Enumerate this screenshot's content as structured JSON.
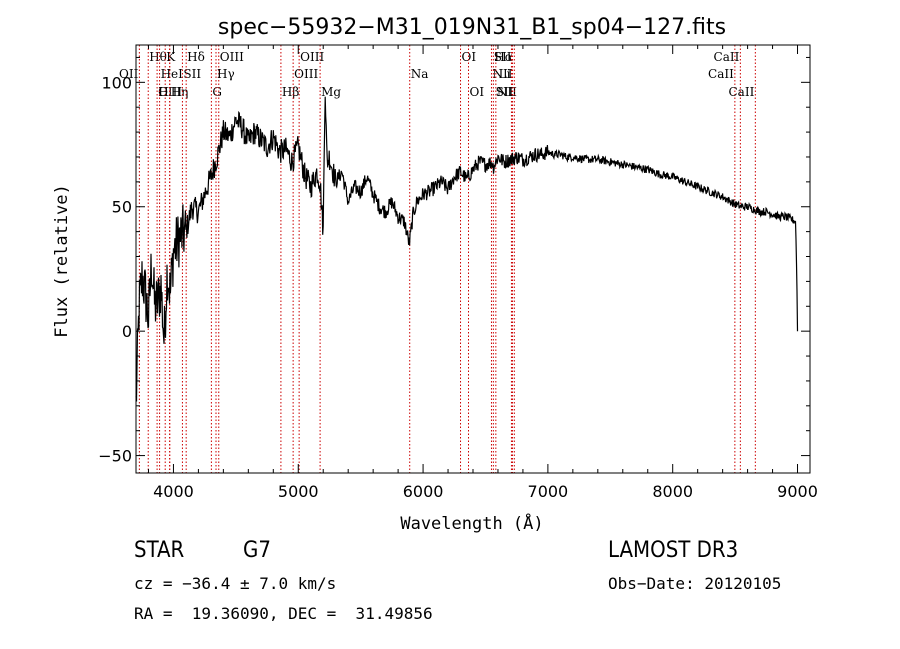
{
  "chart_data": {
    "type": "line",
    "title": "spec−55932−M31_019N31_B1_sp04−127.fits",
    "xlabel": "Wavelength (Å)",
    "ylabel": "Flux (relative)",
    "xlim": [
      3700,
      9100
    ],
    "ylim": [
      -57,
      115
    ],
    "xticks": [
      4000,
      5000,
      6000,
      7000,
      8000,
      9000
    ],
    "yticks": [
      -50,
      0,
      50,
      100
    ],
    "ytick_labels": [
      "−50",
      "0",
      "50",
      "100"
    ],
    "grid": false,
    "series": [
      {
        "name": "Flux",
        "x": [
          3700,
          3725,
          3750,
          3775,
          3800,
          3825,
          3850,
          3875,
          3900,
          3925,
          3950,
          3975,
          4000,
          4050,
          4100,
          4150,
          4200,
          4250,
          4300,
          4350,
          4400,
          4450,
          4500,
          4550,
          4600,
          4650,
          4700,
          4750,
          4800,
          4850,
          4900,
          4950,
          5000,
          5050,
          5100,
          5150,
          5175,
          5200,
          5215,
          5230,
          5250,
          5300,
          5350,
          5400,
          5450,
          5500,
          5550,
          5600,
          5650,
          5700,
          5750,
          5800,
          5850,
          5890,
          5920,
          5950,
          6000,
          6050,
          6100,
          6150,
          6200,
          6250,
          6300,
          6350,
          6400,
          6450,
          6500,
          6550,
          6563,
          6600,
          6650,
          6700,
          6750,
          6800,
          6850,
          6900,
          6950,
          7000,
          7050,
          7100,
          7150,
          7200,
          7300,
          7400,
          7500,
          7600,
          7700,
          7800,
          7900,
          8000,
          8100,
          8200,
          8300,
          8400,
          8500,
          8550,
          8600,
          8650,
          8700,
          8750,
          8800,
          8850,
          8900,
          8950,
          8985,
          8995,
          9000
        ],
        "values": [
          -30,
          10,
          22,
          15,
          5,
          28,
          10,
          12,
          18,
          -4,
          25,
          15,
          32,
          38,
          40,
          50,
          48,
          55,
          62,
          70,
          80,
          78,
          85,
          82,
          76,
          80,
          77,
          74,
          78,
          72,
          73,
          68,
          74,
          63,
          58,
          64,
          60,
          40,
          100,
          68,
          70,
          60,
          64,
          52,
          58,
          56,
          62,
          55,
          50,
          48,
          52,
          46,
          44,
          35,
          47,
          52,
          55,
          56,
          58,
          60,
          57,
          62,
          64,
          61,
          65,
          68,
          67,
          68,
          66,
          70,
          68,
          69,
          70,
          69,
          70,
          71,
          71,
          72,
          71,
          71,
          70,
          70,
          69,
          69,
          68,
          67,
          66,
          65,
          63,
          62,
          60,
          58,
          56,
          54,
          51,
          50,
          50,
          49,
          48,
          48,
          47,
          46,
          46,
          45,
          44,
          20,
          0
        ]
      }
    ],
    "emission_lines": [
      {
        "label": "OII",
        "x": 3727,
        "row": 1,
        "side": "left"
      },
      {
        "label": "Hθ",
        "x": 3798,
        "row": 0,
        "side": "right"
      },
      {
        "label": "OIII",
        "x": 3869,
        "row": 2,
        "side": "right"
      },
      {
        "label": "HeI",
        "x": 3889,
        "row": 1,
        "side": "right"
      },
      {
        "label": "K",
        "x": 3934,
        "row": 0,
        "side": "right"
      },
      {
        "label": "Hη",
        "x": 3970,
        "row": 2,
        "side": "right"
      },
      {
        "label": "SII",
        "x": 4072,
        "row": 1,
        "side": "right"
      },
      {
        "label": "Hδ",
        "x": 4102,
        "row": 0,
        "side": "right"
      },
      {
        "label": "H",
        "x": 3970,
        "row": 2,
        "side": "left"
      },
      {
        "label": "G",
        "x": 4304,
        "row": 2,
        "side": "right"
      },
      {
        "label": "OIII",
        "x": 4363,
        "row": 0,
        "side": "right"
      },
      {
        "label": "Hγ",
        "x": 4341,
        "row": 1,
        "side": "right"
      },
      {
        "label": "Hβ",
        "x": 4861,
        "row": 2,
        "side": "right"
      },
      {
        "label": "OIII",
        "x": 4959,
        "row": 1,
        "side": "right"
      },
      {
        "label": "OIII",
        "x": 5007,
        "row": 0,
        "side": "right"
      },
      {
        "label": "Mg",
        "x": 5175,
        "row": 2,
        "side": "right"
      },
      {
        "label": "Na",
        "x": 5893,
        "row": 1,
        "side": "right"
      },
      {
        "label": "OI",
        "x": 6300,
        "row": 0,
        "side": "right"
      },
      {
        "label": "OI",
        "x": 6364,
        "row": 2,
        "side": "right"
      },
      {
        "label": "NII",
        "x": 6548,
        "row": 1,
        "side": "right"
      },
      {
        "label": "Hα",
        "x": 6563,
        "row": 0,
        "side": "right"
      },
      {
        "label": "NII",
        "x": 6583,
        "row": 2,
        "side": "right"
      },
      {
        "label": "SII",
        "x": 6716,
        "row": 0,
        "side": "left"
      },
      {
        "label": "Li",
        "x": 6708,
        "row": 1,
        "side": "left"
      },
      {
        "label": "SII",
        "x": 6731,
        "row": 2,
        "side": "left"
      },
      {
        "label": "CaII",
        "x": 8498,
        "row": 1,
        "side": "left"
      },
      {
        "label": "CaII",
        "x": 8542,
        "row": 0,
        "side": "left"
      },
      {
        "label": "CaII",
        "x": 8662,
        "row": 2,
        "side": "left"
      }
    ]
  },
  "info": {
    "class": "STAR",
    "subclass": "G7",
    "survey": "LAMOST DR3",
    "cz": "cz = −36.4 ± 7.0 km/s",
    "obs_date": "Obs−Date: 20120105",
    "radec": "RA =  19.36090, DEC =  31.49856"
  },
  "colors": {
    "line_marker": "#cc0000",
    "spectrum": "#000000",
    "axes": "#000000"
  }
}
